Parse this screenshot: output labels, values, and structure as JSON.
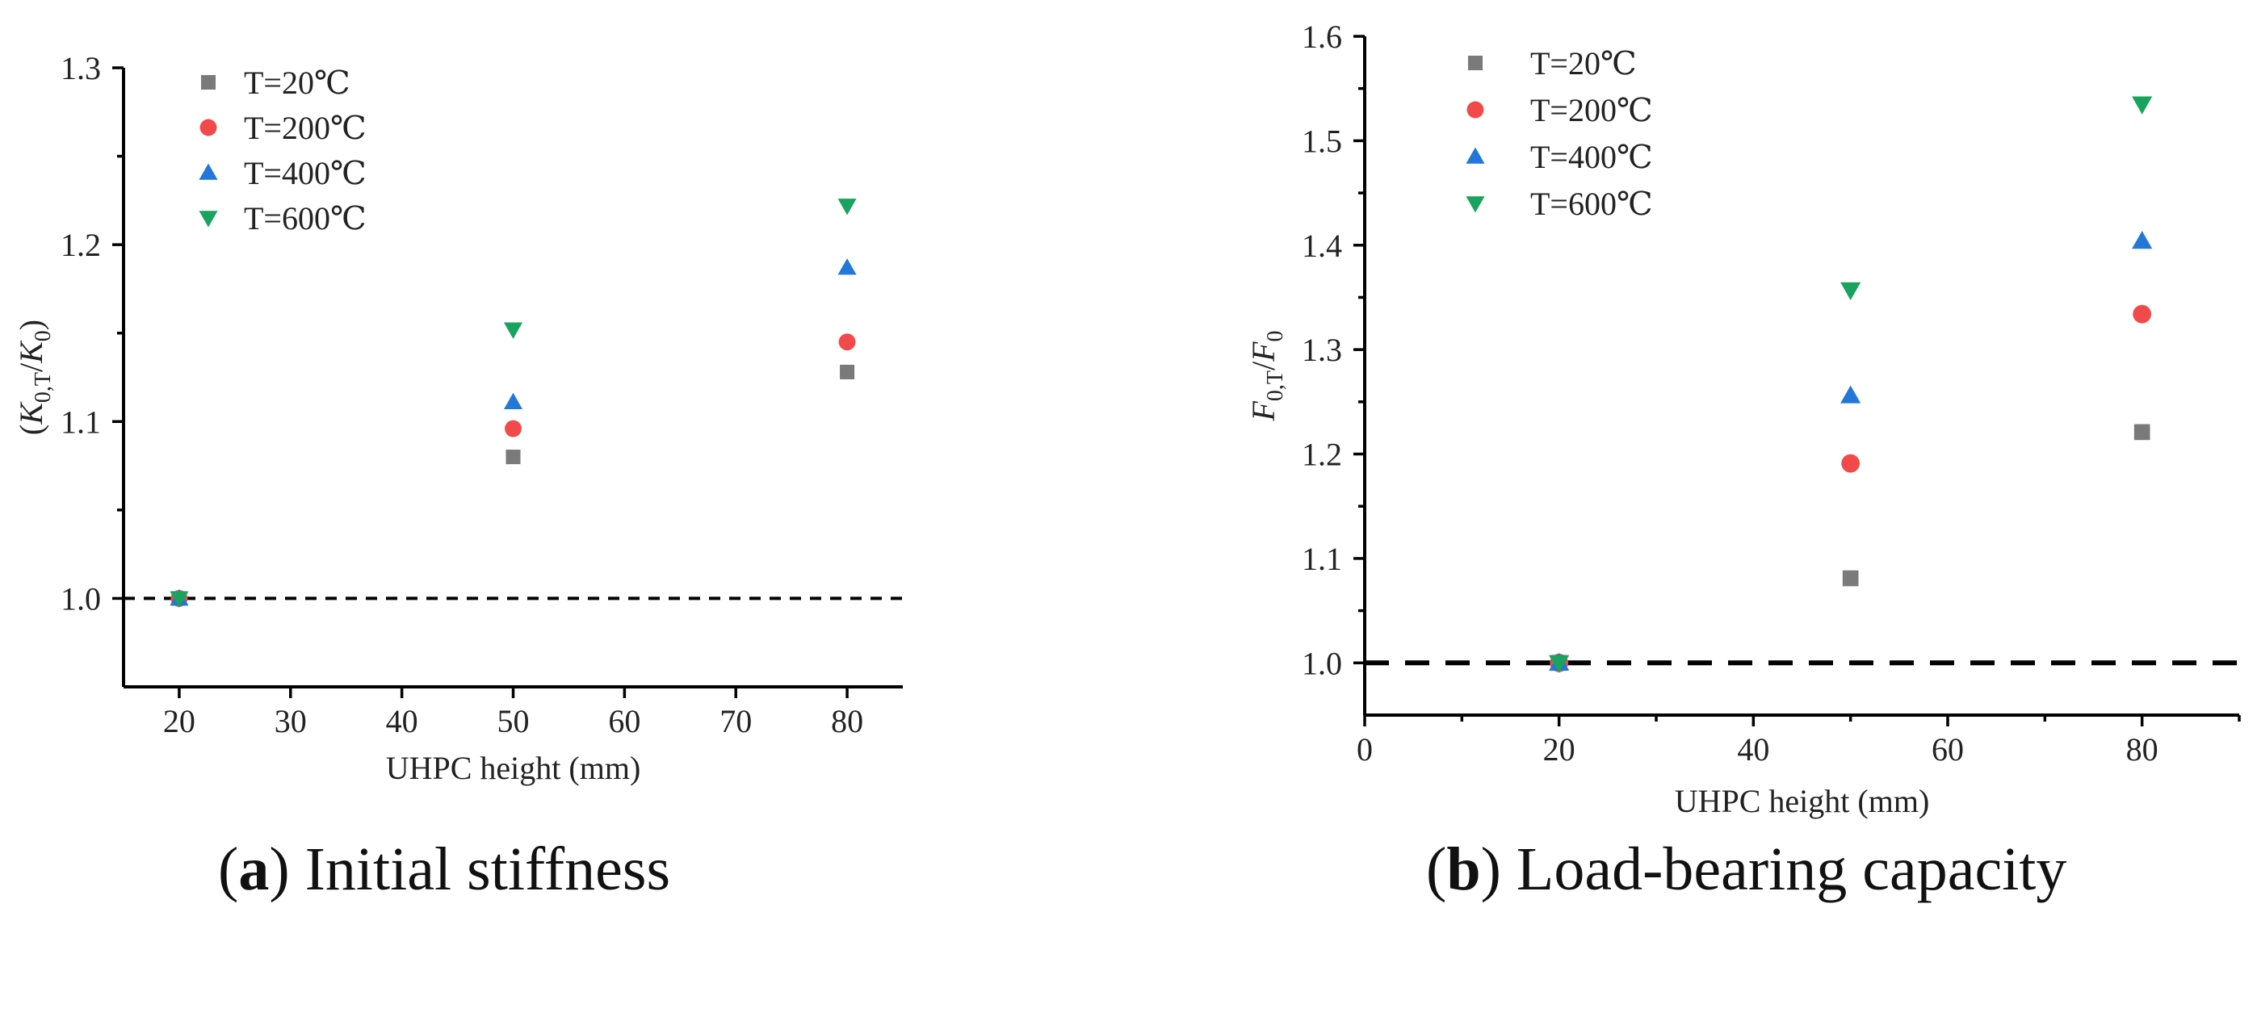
{
  "chart_data": [
    {
      "type": "scatter",
      "panel": "a",
      "caption_letter": "a",
      "caption_text": "Initial stiffness",
      "title": "",
      "xlabel": "UHPC height (mm)",
      "ylabel_parts": {
        "open": "(",
        "var": "K",
        "sub": "0,T",
        "slash": "/",
        "var2": "K",
        "sub2": "0",
        "close": ")"
      },
      "xlim": [
        15,
        85
      ],
      "ylim": [
        0.95,
        1.3
      ],
      "xticks": [
        20,
        30,
        40,
        50,
        60,
        70,
        80
      ],
      "xtick_labels": [
        "20",
        "30",
        "40",
        "50",
        "60",
        "70",
        "80"
      ],
      "yticks": [
        1.0,
        1.1,
        1.2,
        1.3
      ],
      "ytick_labels": [
        "1.0",
        "1.1",
        "1.2",
        "1.3"
      ],
      "reference_line": 1.0,
      "legend_position": "top-left",
      "series": [
        {
          "name": "T=20℃",
          "x": [
            20,
            50,
            80
          ],
          "y": [
            1.0,
            1.08,
            1.128
          ]
        },
        {
          "name": "T=200℃",
          "x": [
            20,
            50,
            80
          ],
          "y": [
            1.0,
            1.096,
            1.145
          ]
        },
        {
          "name": "T=400℃",
          "x": [
            20,
            50,
            80
          ],
          "y": [
            1.0,
            1.111,
            1.187
          ]
        },
        {
          "name": "T=600℃",
          "x": [
            20,
            50,
            80
          ],
          "y": [
            1.0,
            1.152,
            1.222
          ]
        }
      ]
    },
    {
      "type": "scatter",
      "panel": "b",
      "caption_letter": "b",
      "caption_text": "Load-bearing capacity",
      "title": "",
      "xlabel": "UHPC height (mm)",
      "ylabel_parts": {
        "open": "",
        "var": "F",
        "sub": "0,T",
        "slash": "/",
        "var2": "F",
        "sub2": "0",
        "close": ""
      },
      "xlim": [
        0,
        90
      ],
      "ylim": [
        0.95,
        1.6
      ],
      "xticks": [
        0,
        20,
        40,
        60,
        80
      ],
      "xtick_labels": [
        "0",
        "20",
        "40",
        "60",
        "80"
      ],
      "yticks": [
        1.0,
        1.1,
        1.2,
        1.3,
        1.4,
        1.5,
        1.6
      ],
      "ytick_labels": [
        "1.0",
        "1.1",
        "1.2",
        "1.3",
        "1.4",
        "1.5",
        "1.6"
      ],
      "reference_line": 1.0,
      "legend_position": "top-left",
      "series": [
        {
          "name": "T=20℃",
          "x": [
            20,
            50,
            80
          ],
          "y": [
            1.0,
            1.081,
            1.221
          ]
        },
        {
          "name": "T=200℃",
          "x": [
            20,
            50,
            80
          ],
          "y": [
            1.0,
            1.191,
            1.334
          ]
        },
        {
          "name": "T=400℃",
          "x": [
            20,
            50,
            80
          ],
          "y": [
            1.0,
            1.256,
            1.404
          ]
        },
        {
          "name": "T=600℃",
          "x": [
            20,
            50,
            80
          ],
          "y": [
            1.0,
            1.357,
            1.535
          ]
        }
      ]
    }
  ],
  "series_styles": [
    {
      "marker": "square",
      "color": "#7a7a7a"
    },
    {
      "marker": "circle",
      "color": "#f24a4a"
    },
    {
      "marker": "triangle-up",
      "color": "#2377d9"
    },
    {
      "marker": "triangle-down",
      "color": "#18a35f"
    }
  ]
}
